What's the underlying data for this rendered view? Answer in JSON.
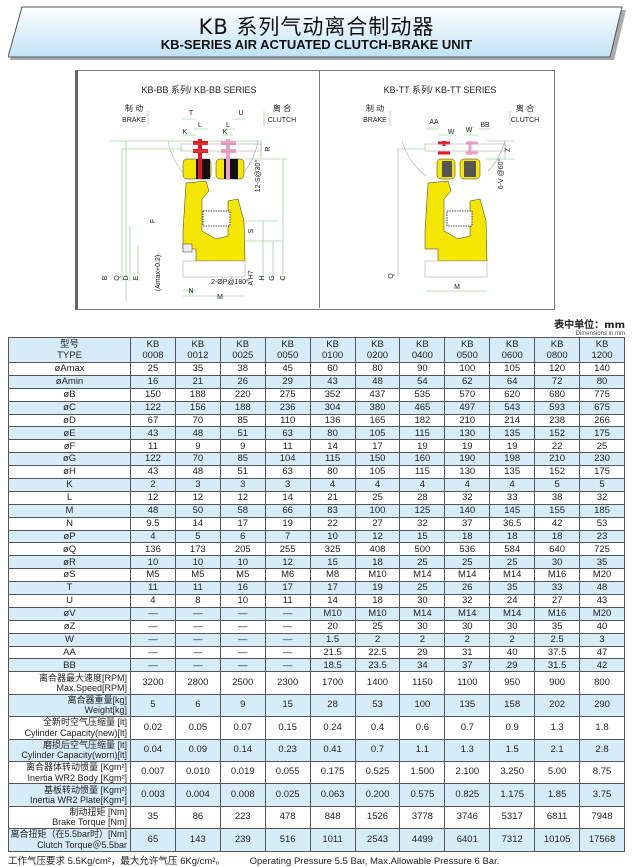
{
  "header": {
    "title_cn": "KB 系列气动离合制动器",
    "title_en": "KB-SERIES AIR ACTUATED CLUTCH-BRAKE UNIT",
    "banner_color": "#cfe9f8"
  },
  "diagram_left": {
    "title": "KB-BB 系列/ KB-BB SERIES",
    "brake_cn": "制 动",
    "brake_en": "BRAKE",
    "clutch_cn": "离 合",
    "clutch_en": "CLUTCH",
    "labels": {
      "T": "T",
      "U": "U",
      "L1": "L",
      "L2": "L",
      "K1": "K",
      "K2": "K",
      "R": "R",
      "S12": "12-S@30°",
      "F": "F",
      "S": "S",
      "B": "B",
      "Q": "Q",
      "D": "D",
      "E": "E",
      "Amax": "(Amax+0.2)",
      "AH7": "A H7",
      "H": "H",
      "G": "G",
      "C": "C",
      "P": "2-ØP@180°",
      "N": "N",
      "M": "M"
    }
  },
  "diagram_right": {
    "title": "KB-TT 系列/ KB-TT SERIES",
    "brake_cn": "制 动",
    "brake_en": "BRAKE",
    "clutch_cn": "离 合",
    "clutch_en": "CLUTCH",
    "labels": {
      "AA": "AA",
      "BB": "BB",
      "W1": "W",
      "W2": "W",
      "Z": "Z",
      "V6": "6-V @60°",
      "Q": "Q",
      "M": "M"
    }
  },
  "colors": {
    "yellow": "#f5e600",
    "brake_red": "#e8141e",
    "clutch_pink": "#f0a0c8",
    "row_blue": "#d6ecf8",
    "dim_green": "#7cc47c"
  },
  "units": {
    "cn": "表中单位：mm",
    "en": "Dimensions in mm"
  },
  "table": {
    "header": {
      "label_cn": "型号",
      "label_en": "TYPE",
      "models": [
        [
          "KB",
          "0008"
        ],
        [
          "KB",
          "0012"
        ],
        [
          "KB",
          "0025"
        ],
        [
          "KB",
          "0050"
        ],
        [
          "KB",
          "0100"
        ],
        [
          "KB",
          "0200"
        ],
        [
          "KB",
          "0400"
        ],
        [
          "KB",
          "0500"
        ],
        [
          "KB",
          "0600"
        ],
        [
          "KB",
          "0800"
        ],
        [
          "KB",
          "1200"
        ]
      ]
    },
    "rows": [
      {
        "label": "øAmax",
        "values": [
          "25",
          "35",
          "38",
          "45",
          "60",
          "80",
          "90",
          "100",
          "105",
          "120",
          "140"
        ]
      },
      {
        "label": "øAmin",
        "values": [
          "16",
          "21",
          "26",
          "29",
          "43",
          "48",
          "54",
          "62",
          "64",
          "72",
          "80"
        ]
      },
      {
        "label": "øB",
        "values": [
          "150",
          "188",
          "220",
          "275",
          "352",
          "437",
          "535",
          "570",
          "620",
          "680",
          "775"
        ]
      },
      {
        "label": "øC",
        "values": [
          "122",
          "156",
          "188",
          "236",
          "304",
          "380",
          "465",
          "497",
          "543",
          "593",
          "675"
        ]
      },
      {
        "label": "øD",
        "values": [
          "67",
          "70",
          "85",
          "110",
          "136",
          "165",
          "182",
          "210",
          "214",
          "238",
          "266"
        ]
      },
      {
        "label": "øE",
        "values": [
          "43",
          "48",
          "51",
          "63",
          "80",
          "105",
          "115",
          "130",
          "135",
          "152",
          "175"
        ]
      },
      {
        "label": "øF",
        "values": [
          "11",
          "9",
          "9",
          "11",
          "14",
          "17",
          "19",
          "19",
          "19",
          "22",
          "25"
        ]
      },
      {
        "label": "øG",
        "values": [
          "122",
          "70",
          "85",
          "104",
          "115",
          "150",
          "160",
          "190",
          "198",
          "210",
          "230"
        ]
      },
      {
        "label": "øH",
        "values": [
          "43",
          "48",
          "51",
          "63",
          "80",
          "105",
          "115",
          "130",
          "135",
          "152",
          "175"
        ]
      },
      {
        "label": "K",
        "values": [
          "2",
          "3",
          "3",
          "3",
          "4",
          "4",
          "4",
          "4",
          "4",
          "5",
          "5"
        ]
      },
      {
        "label": "L",
        "values": [
          "12",
          "12",
          "12",
          "14",
          "21",
          "25",
          "28",
          "32",
          "33",
          "38",
          "32"
        ]
      },
      {
        "label": "M",
        "values": [
          "48",
          "50",
          "58",
          "66",
          "83",
          "100",
          "125",
          "140",
          "145",
          "155",
          "185"
        ]
      },
      {
        "label": "N",
        "values": [
          "9.5",
          "14",
          "17",
          "19",
          "22",
          "27",
          "32",
          "37",
          "36.5",
          "42",
          "53"
        ]
      },
      {
        "label": "øP",
        "values": [
          "4",
          "5",
          "6",
          "7",
          "10",
          "12",
          "15",
          "18",
          "18",
          "18",
          "23"
        ]
      },
      {
        "label": "øQ",
        "values": [
          "136",
          "173",
          "205",
          "255",
          "325",
          "408",
          "500",
          "536",
          "584",
          "640",
          "725"
        ]
      },
      {
        "label": "øR",
        "values": [
          "10",
          "10",
          "10",
          "12",
          "15",
          "18",
          "25",
          "25",
          "25",
          "30",
          "35"
        ]
      },
      {
        "label": "øS",
        "values": [
          "M5",
          "M5",
          "M5",
          "M6",
          "M8",
          "M10",
          "M14",
          "M14",
          "M14",
          "M16",
          "M20"
        ]
      },
      {
        "label": "T",
        "values": [
          "11",
          "11",
          "16",
          "17",
          "17",
          "19",
          "25",
          "26",
          "35",
          "33",
          "48"
        ]
      },
      {
        "label": "U",
        "values": [
          "4",
          "8",
          "10",
          "11",
          "14",
          "18",
          "30",
          "32",
          "24",
          "27",
          "43"
        ]
      },
      {
        "label": "øV",
        "values": [
          "—",
          "—",
          "—",
          "—",
          "M10",
          "M10",
          "M14",
          "M14",
          "M14",
          "M16",
          "M20"
        ]
      },
      {
        "label": "øZ",
        "values": [
          "—",
          "—",
          "—",
          "—",
          "20",
          "25",
          "30",
          "30",
          "30",
          "35",
          "40"
        ]
      },
      {
        "label": "W",
        "values": [
          "—",
          "—",
          "—",
          "—",
          "1.5",
          "2",
          "2",
          "2",
          "2",
          "2.5",
          "3"
        ]
      },
      {
        "label": "AA",
        "values": [
          "—",
          "—",
          "—",
          "—",
          "21.5",
          "22.5",
          "29",
          "31",
          "40",
          "37.5",
          "47"
        ]
      },
      {
        "label": "BB",
        "values": [
          "—",
          "—",
          "—",
          "—",
          "18.5",
          "23.5",
          "34",
          "37",
          "29",
          "31.5",
          "42"
        ]
      },
      {
        "label_cn": "离合器最大速度[RPM]",
        "label_en": "Max.Speed[RPM]",
        "values": [
          "3200",
          "2800",
          "2500",
          "2300",
          "1700",
          "1400",
          "1150",
          "1100",
          "950",
          "900",
          "800"
        ]
      },
      {
        "label_cn": "离合器重量[kg]",
        "label_en": "Weight[kg]",
        "values": [
          "5",
          "6",
          "9",
          "15",
          "28",
          "53",
          "100",
          "135",
          "158",
          "202",
          "290"
        ]
      },
      {
        "label_cn": "全新时空气压缩量 [lt]",
        "label_en": "Cylinder Capacity(new)[lt]",
        "values": [
          "0.02",
          "0.05",
          "0.07",
          "0.15",
          "0.24",
          "0.4",
          "0.6",
          "0.7",
          "0.9",
          "1.3",
          "1.8"
        ]
      },
      {
        "label_cn": "磨损后空气压缩量 [lt]",
        "label_en": "Cylinder Capacity(worn)[lt]",
        "values": [
          "0.04",
          "0.09",
          "0.14",
          "0.23",
          "0.41",
          "0.7",
          "1.1",
          "1.3",
          "1.5",
          "2.1",
          "2.8"
        ]
      },
      {
        "label_cn": "离合器体转动惯量 [Kgm²]",
        "label_en": "Inertia WR2 Body [Kgm²]",
        "values": [
          "0.007",
          "0.010",
          "0.019",
          "0.055",
          "0.175",
          "0.525",
          "1.500",
          "2.100",
          "3.250",
          "5.00",
          "8.75"
        ]
      },
      {
        "label_cn": "基板转动惯量 [Kgm²]",
        "label_en": "Inertia WR2 Plate[Kgm²]",
        "values": [
          "0.003",
          "0.004",
          "0.008",
          "0.025",
          "0.063",
          "0.200",
          "0.575",
          "0.825",
          "1.175",
          "1.85",
          "3.75"
        ]
      },
      {
        "label_cn": "制动扭矩 [Nm]",
        "label_en": "Brake Torque [Nm]",
        "values": [
          "35",
          "86",
          "223",
          "478",
          "848",
          "1526",
          "3778",
          "3746",
          "5317",
          "6811",
          "7948"
        ]
      },
      {
        "label_cn": "离合扭矩（在5.5bar时）[Nm]",
        "label_en": "Clutch Torque＠5.5bar",
        "values": [
          "65",
          "143",
          "239",
          "516",
          "1011",
          "2543",
          "4499",
          "6401",
          "7312",
          "10105",
          "17568"
        ]
      }
    ]
  },
  "footer": {
    "cn": "工作气压要求 5.5Kg/cm²，最大允许气压 6Kg/cm²。",
    "en": "Operating Pressure 5.5 Bar, Max.Allowable Pressure 6 Bar."
  }
}
